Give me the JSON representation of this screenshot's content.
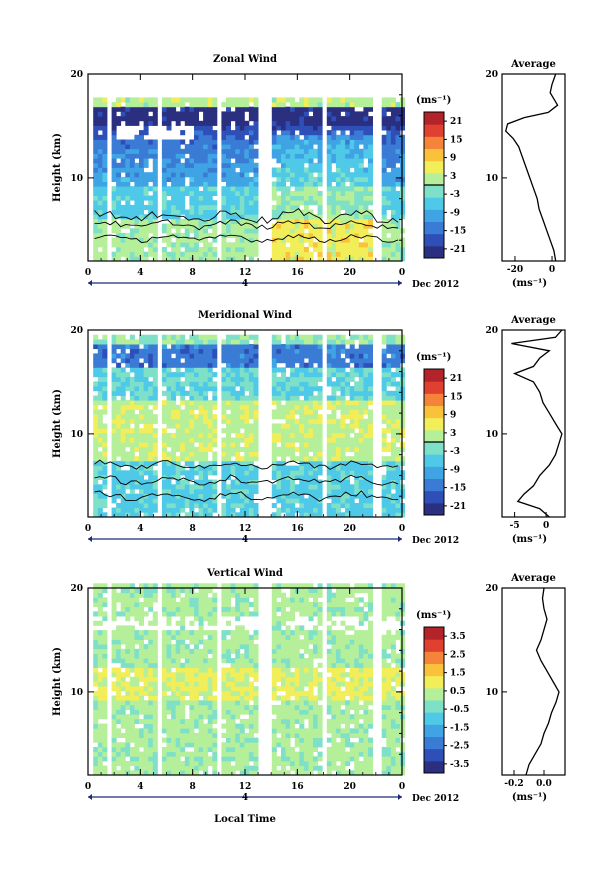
{
  "figure": {
    "x_axis_label": "Local Time",
    "date_label": "Dec 2012",
    "day_marker": "4",
    "colormap": [
      "#2b2f7f",
      "#2f4fb8",
      "#3a7bd5",
      "#3fa3e4",
      "#4fc9e8",
      "#7fe0c8",
      "#b5ef9a",
      "#f2ee5a",
      "#f9c23a",
      "#f5843a",
      "#e0402f",
      "#b3232a"
    ]
  },
  "chart_data": [
    {
      "type": "heatmap",
      "title": "Zonal Wind",
      "ylabel": "Height (km)",
      "xlabel": "",
      "x_ticks": [
        "0",
        "4",
        "8",
        "12",
        "16",
        "20",
        "0"
      ],
      "x_range": [
        0,
        24
      ],
      "y_ticks": [
        "10",
        "20"
      ],
      "y_range": [
        2,
        20
      ],
      "colorbar": {
        "unit": "(ms⁻¹)",
        "ticks": [
          "21",
          "15",
          "9",
          "3",
          "-3",
          "-9",
          "-15",
          "-21"
        ],
        "range": [
          -24,
          24
        ],
        "zero_line": 0
      },
      "average": {
        "title": "Average",
        "xlabel": "(ms⁻¹)",
        "x_ticks": [
          "-20",
          "0"
        ],
        "x_range": [
          -27,
          7
        ],
        "y_ticks": [
          "10",
          "20"
        ],
        "profile": [
          {
            "h": 2.0,
            "v": 2
          },
          {
            "h": 3,
            "v": 1
          },
          {
            "h": 4,
            "v": -1
          },
          {
            "h": 5,
            "v": -3
          },
          {
            "h": 6,
            "v": -5
          },
          {
            "h": 7,
            "v": -7
          },
          {
            "h": 8,
            "v": -8
          },
          {
            "h": 9,
            "v": -10
          },
          {
            "h": 10,
            "v": -12
          },
          {
            "h": 11,
            "v": -14
          },
          {
            "h": 12,
            "v": -16
          },
          {
            "h": 13,
            "v": -18
          },
          {
            "h": 13.8,
            "v": -21
          },
          {
            "h": 14.5,
            "v": -25
          },
          {
            "h": 15.2,
            "v": -24
          },
          {
            "h": 15.8,
            "v": -15
          },
          {
            "h": 16.3,
            "v": -2
          },
          {
            "h": 17,
            "v": 3
          },
          {
            "h": 17.6,
            "v": 1
          },
          {
            "h": 18.2,
            "v": -1
          },
          {
            "h": 19,
            "v": 0
          },
          {
            "h": 20,
            "v": 2
          }
        ]
      }
    },
    {
      "type": "heatmap",
      "title": "Meridional Wind",
      "ylabel": "Height (km)",
      "xlabel": "",
      "x_ticks": [
        "0",
        "4",
        "8",
        "12",
        "16",
        "20",
        "0"
      ],
      "x_range": [
        0,
        24
      ],
      "y_ticks": [
        "10",
        "20"
      ],
      "y_range": [
        2,
        20
      ],
      "colorbar": {
        "unit": "(ms⁻¹)",
        "ticks": [
          "21",
          "15",
          "9",
          "3",
          "-3",
          "-9",
          "-15",
          "-21"
        ],
        "range": [
          -24,
          24
        ],
        "zero_line": 0
      },
      "average": {
        "title": "Average",
        "xlabel": "(ms⁻¹)",
        "x_ticks": [
          "-5",
          "0"
        ],
        "x_range": [
          -7,
          3
        ],
        "y_ticks": [
          "10",
          "20"
        ],
        "profile": [
          {
            "h": 2.0,
            "v": 0.5
          },
          {
            "h": 2.8,
            "v": -1
          },
          {
            "h": 3.5,
            "v": -4.5
          },
          {
            "h": 4.2,
            "v": -3.5
          },
          {
            "h": 5,
            "v": -2
          },
          {
            "h": 6,
            "v": -1
          },
          {
            "h": 7,
            "v": 0.5
          },
          {
            "h": 8,
            "v": 1.5
          },
          {
            "h": 9,
            "v": 2
          },
          {
            "h": 10,
            "v": 2.5
          },
          {
            "h": 11,
            "v": 1.5
          },
          {
            "h": 12,
            "v": 0.5
          },
          {
            "h": 13,
            "v": -0.5
          },
          {
            "h": 14,
            "v": -1
          },
          {
            "h": 15,
            "v": -2
          },
          {
            "h": 15.8,
            "v": -5
          },
          {
            "h": 16.5,
            "v": -2
          },
          {
            "h": 17.3,
            "v": -1
          },
          {
            "h": 18,
            "v": 0.5
          },
          {
            "h": 18.7,
            "v": -5.5
          },
          {
            "h": 19.3,
            "v": 1.5
          },
          {
            "h": 20,
            "v": 2.5
          }
        ]
      }
    },
    {
      "type": "heatmap",
      "title": "Vertical Wind",
      "ylabel": "Height (km)",
      "xlabel": "Local Time",
      "x_ticks": [
        "0",
        "4",
        "8",
        "12",
        "16",
        "20",
        "0"
      ],
      "x_range": [
        0,
        24
      ],
      "y_ticks": [
        "10",
        "20"
      ],
      "y_range": [
        2,
        20
      ],
      "colorbar": {
        "unit": "(ms⁻¹)",
        "ticks": [
          "3.5",
          "2.5",
          "1.5",
          "0.5",
          "-0.5",
          "-1.5",
          "-2.5",
          "-3.5"
        ],
        "range": [
          -4,
          4
        ],
        "zero_line": null
      },
      "average": {
        "title": "Average",
        "xlabel": "(ms⁻¹)",
        "x_ticks": [
          "-0.2",
          "0.0"
        ],
        "x_range": [
          -0.28,
          0.14
        ],
        "y_ticks": [
          "10",
          "20"
        ],
        "profile": [
          {
            "h": 2.0,
            "v": -0.12
          },
          {
            "h": 3,
            "v": -0.1
          },
          {
            "h": 4,
            "v": -0.06
          },
          {
            "h": 5,
            "v": -0.02
          },
          {
            "h": 6,
            "v": 0.0
          },
          {
            "h": 7,
            "v": 0.03
          },
          {
            "h": 8,
            "v": 0.05
          },
          {
            "h": 9,
            "v": 0.08
          },
          {
            "h": 10,
            "v": 0.1
          },
          {
            "h": 11,
            "v": 0.06
          },
          {
            "h": 12,
            "v": 0.02
          },
          {
            "h": 13,
            "v": -0.02
          },
          {
            "h": 14,
            "v": -0.05
          },
          {
            "h": 15,
            "v": -0.02
          },
          {
            "h": 16,
            "v": 0.0
          },
          {
            "h": 17,
            "v": 0.02
          },
          {
            "h": 18,
            "v": 0.0
          },
          {
            "h": 19,
            "v": -0.01
          },
          {
            "h": 20,
            "v": 0.0
          }
        ]
      }
    }
  ]
}
